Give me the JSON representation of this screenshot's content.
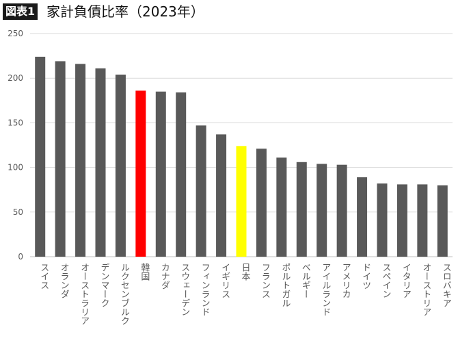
{
  "header": {
    "badge": "図表1",
    "title": "家計負債比率（2023年）"
  },
  "colors": {
    "default_bar": "#595959",
    "highlight_korea": "#ff0000",
    "highlight_japan": "#ffff00",
    "grid": "#d9d9d9",
    "axis": "#bfbfbf"
  },
  "chart_data": {
    "type": "bar",
    "title": "家計負債比率（2023年）",
    "ylim": [
      0,
      250
    ],
    "yticks": [
      0,
      50,
      100,
      150,
      200,
      250
    ],
    "grid": true,
    "categories": [
      "スイス",
      "オランダ",
      "オーストラリア",
      "デンマーク",
      "ルクセンブルク",
      "韓国",
      "カナダ",
      "スウェーデン",
      "フィンランド",
      "イギリス",
      "日本",
      "フランス",
      "ポルトガル",
      "ベルギー",
      "アイルランド",
      "アメリカ",
      "ドイツ",
      "スペイン",
      "イタリア",
      "オーストリア",
      "スロバキア"
    ],
    "values": [
      224,
      219,
      216,
      211,
      204,
      186,
      185,
      184,
      147,
      137,
      124,
      121,
      111,
      106,
      104,
      103,
      89,
      82,
      81,
      81,
      80
    ],
    "bar_colors": [
      "#595959",
      "#595959",
      "#595959",
      "#595959",
      "#595959",
      "#ff0000",
      "#595959",
      "#595959",
      "#595959",
      "#595959",
      "#ffff00",
      "#595959",
      "#595959",
      "#595959",
      "#595959",
      "#595959",
      "#595959",
      "#595959",
      "#595959",
      "#595959",
      "#595959"
    ]
  }
}
